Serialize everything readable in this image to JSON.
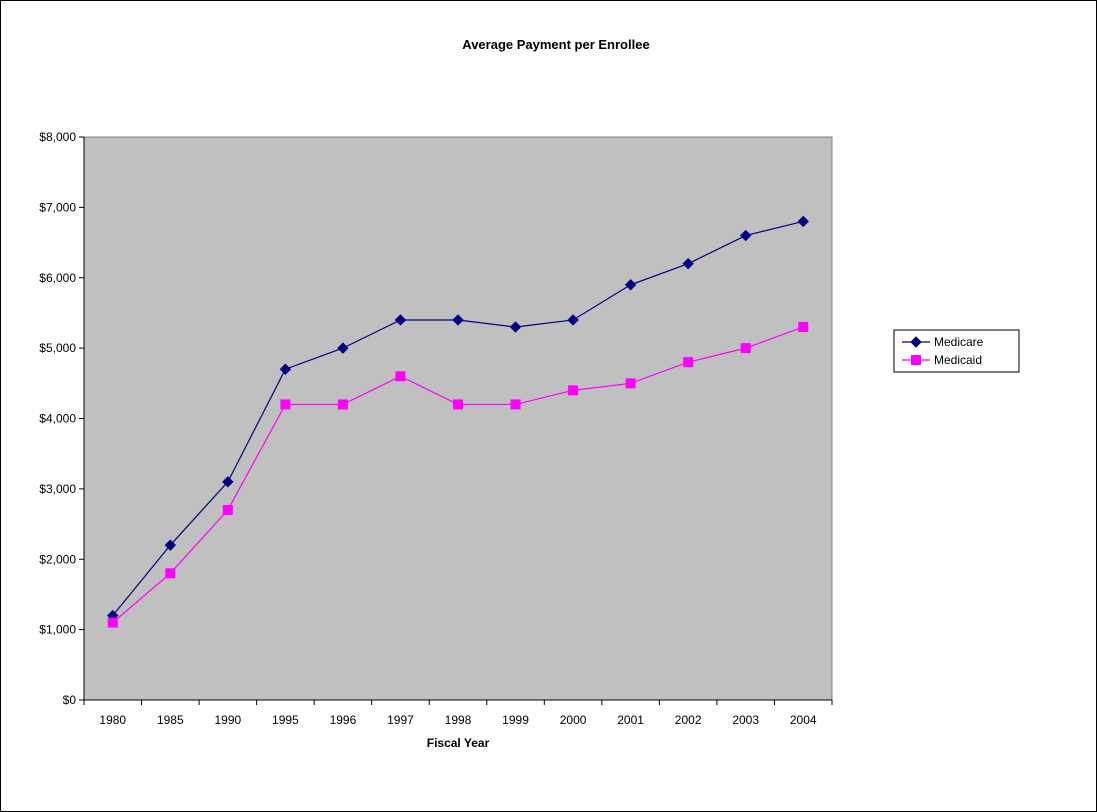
{
  "chart_data": {
    "type": "line",
    "title": "Average Payment per Enrollee",
    "xlabel": "Fiscal Year",
    "ylabel": "",
    "categories": [
      "1980",
      "1985",
      "1990",
      "1995",
      "1996",
      "1997",
      "1998",
      "1999",
      "2000",
      "2001",
      "2002",
      "2003",
      "2004"
    ],
    "ylim": [
      0,
      8000
    ],
    "yticks": [
      0,
      1000,
      2000,
      3000,
      4000,
      5000,
      6000,
      7000,
      8000
    ],
    "ytick_labels": [
      "$0",
      "$1,000",
      "$2,000",
      "$3,000",
      "$4,000",
      "$5,000",
      "$6,000",
      "$7,000",
      "$8,000"
    ],
    "grid": false,
    "legend_position": "right",
    "series": [
      {
        "name": "Medicare",
        "color": "#000080",
        "marker": "diamond",
        "values": [
          1200,
          2200,
          3100,
          4700,
          5000,
          5400,
          5400,
          5300,
          5400,
          5900,
          6200,
          6600,
          6800
        ]
      },
      {
        "name": "Medicaid",
        "color": "#FF00FF",
        "marker": "square",
        "values": [
          1100,
          1800,
          2700,
          4200,
          4200,
          4600,
          4200,
          4200,
          4400,
          4500,
          4800,
          5000,
          5300
        ]
      }
    ],
    "plot_background": "#C0C0C0"
  }
}
